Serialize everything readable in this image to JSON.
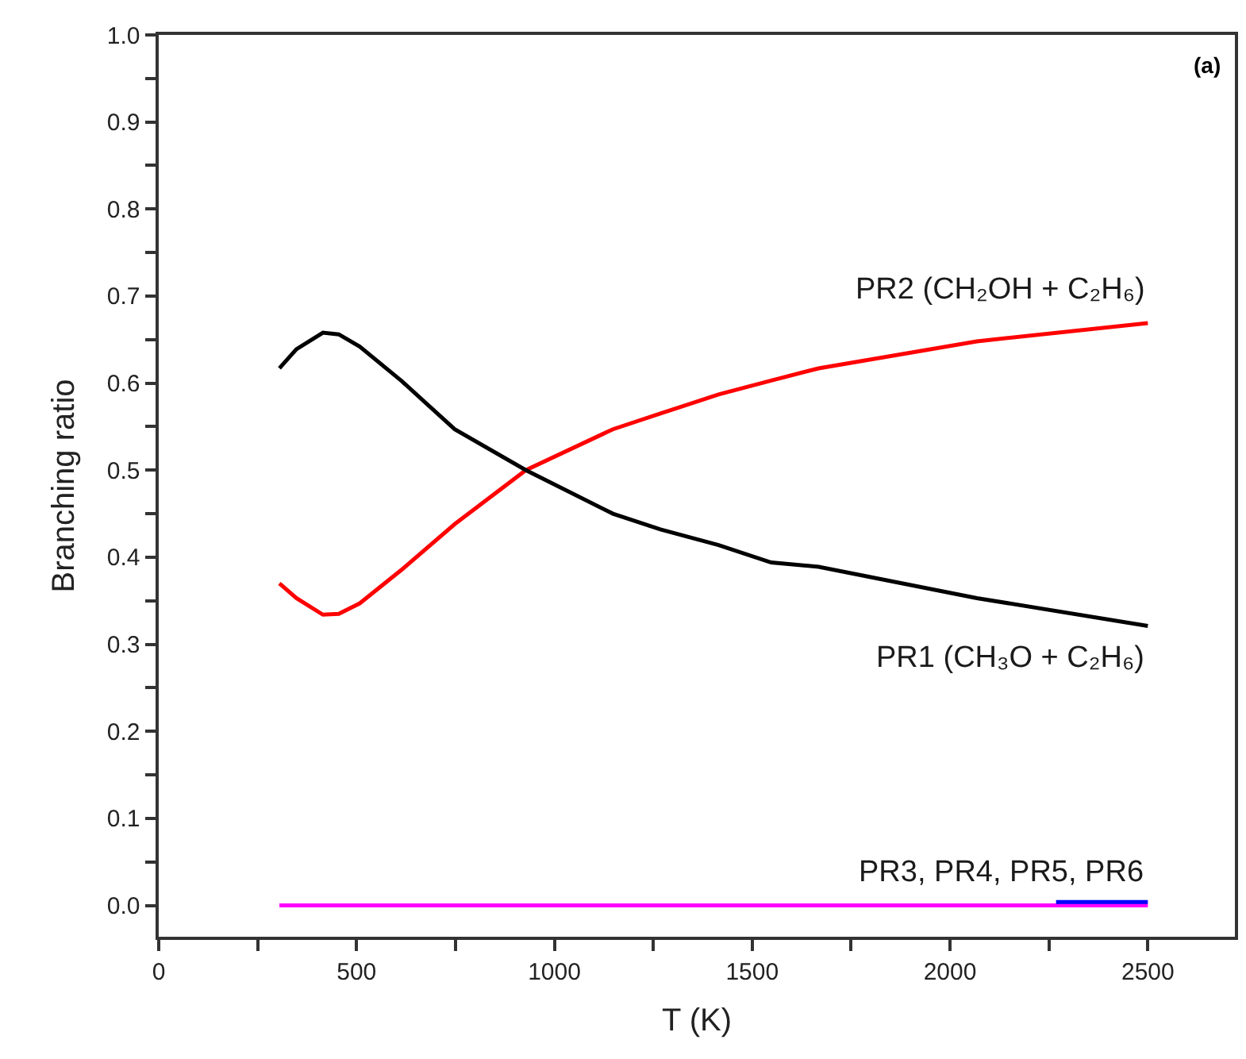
{
  "chart_data": {
    "type": "line",
    "xlabel": "T (K)",
    "ylabel": "Branching ratio",
    "annotations": [
      "(a)"
    ],
    "xlim": [
      0,
      2720
    ],
    "ylim": [
      -0.036,
      1.0
    ],
    "xticks": [
      0,
      {
        "value": 250,
        "label": null
      },
      500,
      {
        "value": 750,
        "label": null
      },
      1000,
      {
        "value": 1250,
        "label": null
      },
      1500,
      {
        "value": 1750,
        "label": null
      },
      2000,
      {
        "value": 2250,
        "label": null
      },
      2500
    ],
    "yticks": [
      {
        "value": 0,
        "label": "0.0"
      },
      {
        "value": 0.05,
        "label": null
      },
      {
        "value": 0.1,
        "label": "0.1"
      },
      {
        "value": 0.15,
        "label": null
      },
      {
        "value": 0.2,
        "label": "0.2"
      },
      {
        "value": 0.25,
        "label": null
      },
      {
        "value": 0.3,
        "label": "0.3"
      },
      {
        "value": 0.35,
        "label": null
      },
      {
        "value": 0.4,
        "label": "0.4"
      },
      {
        "value": 0.45,
        "label": null
      },
      {
        "value": 0.5,
        "label": "0.5"
      },
      {
        "value": 0.55,
        "label": null
      },
      {
        "value": 0.6,
        "label": "0.6"
      },
      {
        "value": 0.65,
        "label": null
      },
      {
        "value": 0.7,
        "label": "0.7"
      },
      {
        "value": 0.75,
        "label": null
      },
      {
        "value": 0.8,
        "label": "0.8"
      },
      {
        "value": 0.85,
        "label": null
      },
      {
        "value": 0.9,
        "label": "0.9"
      },
      {
        "value": 0.95,
        "label": null
      },
      {
        "value": 1.0,
        "label": "1.0"
      }
    ],
    "legend": false,
    "marker": "none",
    "line_style": "solid",
    "series": [
      {
        "name": "PR2 (CH₂OH + C₂H₆)",
        "color": "#ff0000",
        "x": [
          305,
          348,
          415,
          455,
          508,
          615,
          748,
          928,
          1148,
          1268,
          1415,
          1548,
          1668,
          2068,
          2500
        ],
        "values": [
          0.37,
          0.353,
          0.334,
          0.335,
          0.347,
          0.386,
          0.438,
          0.5,
          0.547,
          0.565,
          0.587,
          0.603,
          0.617,
          0.648,
          0.669
        ]
      },
      {
        "name": "PR1 (CH₃O + C₂H₆)",
        "color": "#000000",
        "x": [
          305,
          348,
          415,
          455,
          508,
          615,
          748,
          928,
          1148,
          1268,
          1415,
          1548,
          1668,
          2068,
          2500
        ],
        "values": [
          0.617,
          0.639,
          0.658,
          0.656,
          0.642,
          0.602,
          0.547,
          0.5,
          0.45,
          0.432,
          0.414,
          0.394,
          0.389,
          0.353,
          0.321
        ]
      },
      {
        "name": "PR3, PR4, PR5, PR6",
        "color": "#ff00ff",
        "x": [
          305,
          2500
        ],
        "values": [
          0,
          0
        ]
      },
      {
        "color": "#0000ff",
        "x": [
          2268,
          2500
        ],
        "values": [
          0.004,
          0.004
        ]
      }
    ]
  }
}
